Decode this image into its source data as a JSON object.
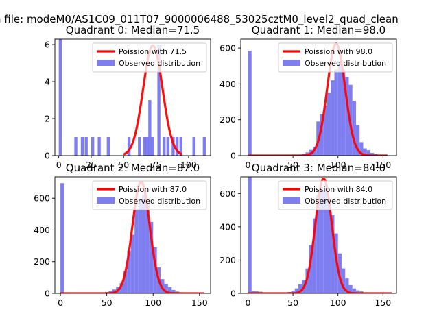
{
  "suptitle": "n file: modeM0/AS1C09_011T07_9000006488_53025cztM0_level2_quad_clean",
  "colors": {
    "model": "#ff0000",
    "hist": "#7070f0"
  },
  "chart_data": [
    {
      "type": "bar",
      "title": "Quadrant 0: Median=71.5",
      "median": 71.5,
      "xlim": [
        -3,
        117
      ],
      "ylim": [
        0,
        6.3
      ],
      "xticks": [
        0,
        25,
        50,
        75,
        100
      ],
      "xtick_labels": [
        "0",
        "25",
        "50",
        "75",
        "100"
      ],
      "yticks": [
        0,
        2,
        4,
        6
      ],
      "ytick_labels": [
        "0",
        "2",
        "4",
        "6"
      ],
      "bin_width": 2.3,
      "bins": [
        {
          "x": 0,
          "y": 6.3
        },
        {
          "x": 12,
          "y": 1
        },
        {
          "x": 17,
          "y": 1
        },
        {
          "x": 20,
          "y": 1
        },
        {
          "x": 25,
          "y": 1
        },
        {
          "x": 30,
          "y": 1
        },
        {
          "x": 37,
          "y": 1
        },
        {
          "x": 53,
          "y": 1
        },
        {
          "x": 61,
          "y": 1
        },
        {
          "x": 65,
          "y": 1
        },
        {
          "x": 67,
          "y": 1
        },
        {
          "x": 69,
          "y": 3
        },
        {
          "x": 71,
          "y": 1
        },
        {
          "x": 76,
          "y": 6
        },
        {
          "x": 80,
          "y": 1
        },
        {
          "x": 83,
          "y": 1
        },
        {
          "x": 87,
          "y": 1
        },
        {
          "x": 90,
          "y": 1
        },
        {
          "x": 93,
          "y": 1
        },
        {
          "x": 103,
          "y": 1
        },
        {
          "x": 111,
          "y": 1
        }
      ],
      "model": {
        "x_min": 50,
        "x_max": 95,
        "amplitude": 5.95,
        "center": 72.5,
        "sigma": 7.5
      },
      "legend": [
        "Poission with 71.5",
        "Observed distribution"
      ]
    },
    {
      "type": "bar",
      "title": "Quadrant 1: Median=98.0",
      "median": 98.0,
      "xlim": [
        -8,
        165
      ],
      "ylim": [
        0,
        650
      ],
      "xticks": [
        0,
        50,
        100,
        150
      ],
      "xtick_labels": [
        "0",
        "50",
        "100",
        "150"
      ],
      "yticks": [
        0,
        200,
        400,
        600
      ],
      "ytick_labels": [
        "0",
        "200",
        "400",
        "600"
      ],
      "bin_width": 4,
      "bins": [
        {
          "x": 0,
          "y": 585
        },
        {
          "x": 4,
          "y": 4
        },
        {
          "x": 8,
          "y": 3
        },
        {
          "x": 12,
          "y": 3
        },
        {
          "x": 16,
          "y": 2
        },
        {
          "x": 20,
          "y": 2
        },
        {
          "x": 24,
          "y": 2
        },
        {
          "x": 28,
          "y": 2
        },
        {
          "x": 32,
          "y": 3
        },
        {
          "x": 36,
          "y": 2
        },
        {
          "x": 40,
          "y": 3
        },
        {
          "x": 44,
          "y": 3
        },
        {
          "x": 48,
          "y": 3
        },
        {
          "x": 52,
          "y": 4
        },
        {
          "x": 56,
          "y": 6
        },
        {
          "x": 60,
          "y": 10
        },
        {
          "x": 64,
          "y": 18
        },
        {
          "x": 68,
          "y": 32
        },
        {
          "x": 72,
          "y": 50
        },
        {
          "x": 76,
          "y": 190
        },
        {
          "x": 80,
          "y": 230
        },
        {
          "x": 84,
          "y": 280
        },
        {
          "x": 88,
          "y": 350
        },
        {
          "x": 92,
          "y": 420
        },
        {
          "x": 96,
          "y": 480
        },
        {
          "x": 100,
          "y": 525
        },
        {
          "x": 104,
          "y": 480
        },
        {
          "x": 108,
          "y": 440
        },
        {
          "x": 112,
          "y": 395
        },
        {
          "x": 116,
          "y": 305
        },
        {
          "x": 120,
          "y": 170
        },
        {
          "x": 124,
          "y": 75
        },
        {
          "x": 128,
          "y": 40
        },
        {
          "x": 132,
          "y": 30
        },
        {
          "x": 136,
          "y": 15
        },
        {
          "x": 140,
          "y": 8
        },
        {
          "x": 144,
          "y": 5
        },
        {
          "x": 148,
          "y": 3
        },
        {
          "x": 152,
          "y": 2
        }
      ],
      "model": {
        "x_min": 0,
        "x_max": 155,
        "amplitude": 625,
        "center": 98,
        "sigma": 9.9
      },
      "legend": [
        "Poission with 98.0",
        "Observed distribution"
      ]
    },
    {
      "type": "bar",
      "title": "Quadrant 2: Median=87.0",
      "median": 87.0,
      "xlim": [
        -6,
        162
      ],
      "ylim": [
        0,
        735
      ],
      "xticks": [
        0,
        50,
        100,
        150
      ],
      "xtick_labels": [
        "0",
        "50",
        "100",
        "150"
      ],
      "yticks": [
        0,
        200,
        400,
        600
      ],
      "ytick_labels": [
        "0",
        "200",
        "400",
        "600"
      ],
      "bin_width": 4,
      "bins": [
        {
          "x": 0,
          "y": 695
        },
        {
          "x": 4,
          "y": 5
        },
        {
          "x": 8,
          "y": 4
        },
        {
          "x": 12,
          "y": 4
        },
        {
          "x": 16,
          "y": 3
        },
        {
          "x": 20,
          "y": 3
        },
        {
          "x": 24,
          "y": 3
        },
        {
          "x": 28,
          "y": 3
        },
        {
          "x": 32,
          "y": 3
        },
        {
          "x": 36,
          "y": 3
        },
        {
          "x": 40,
          "y": 3
        },
        {
          "x": 44,
          "y": 4
        },
        {
          "x": 48,
          "y": 8
        },
        {
          "x": 52,
          "y": 15
        },
        {
          "x": 56,
          "y": 25
        },
        {
          "x": 60,
          "y": 42
        },
        {
          "x": 64,
          "y": 65
        },
        {
          "x": 68,
          "y": 140
        },
        {
          "x": 72,
          "y": 270
        },
        {
          "x": 76,
          "y": 370
        },
        {
          "x": 80,
          "y": 530
        },
        {
          "x": 84,
          "y": 590
        },
        {
          "x": 88,
          "y": 620
        },
        {
          "x": 92,
          "y": 560
        },
        {
          "x": 96,
          "y": 450
        },
        {
          "x": 100,
          "y": 290
        },
        {
          "x": 104,
          "y": 165
        },
        {
          "x": 108,
          "y": 90
        },
        {
          "x": 112,
          "y": 60
        },
        {
          "x": 116,
          "y": 40
        },
        {
          "x": 120,
          "y": 22
        },
        {
          "x": 124,
          "y": 12
        },
        {
          "x": 128,
          "y": 7
        },
        {
          "x": 132,
          "y": 4
        },
        {
          "x": 136,
          "y": 3
        },
        {
          "x": 140,
          "y": 2
        },
        {
          "x": 144,
          "y": 2
        },
        {
          "x": 148,
          "y": 2
        },
        {
          "x": 152,
          "y": 2
        }
      ],
      "model": {
        "x_min": 0,
        "x_max": 155,
        "amplitude": 705,
        "center": 87,
        "sigma": 9.3
      },
      "legend": [
        "Poission with 87.0",
        "Observed distribution"
      ]
    },
    {
      "type": "bar",
      "title": "Quadrant 3: Median=84.0",
      "median": 84.0,
      "xlim": [
        -8,
        165
      ],
      "ylim": [
        0,
        700
      ],
      "xticks": [
        0,
        50,
        100,
        150
      ],
      "xtick_labels": [
        "0",
        "50",
        "100",
        "150"
      ],
      "yticks": [
        0,
        200,
        400,
        600
      ],
      "ytick_labels": [
        "0",
        "200",
        "400",
        "600"
      ],
      "bin_width": 4,
      "bins": [
        {
          "x": 0,
          "y": 700
        },
        {
          "x": 4,
          "y": 14
        },
        {
          "x": 8,
          "y": 12
        },
        {
          "x": 12,
          "y": 10
        },
        {
          "x": 16,
          "y": 5
        },
        {
          "x": 20,
          "y": 4
        },
        {
          "x": 24,
          "y": 4
        },
        {
          "x": 28,
          "y": 4
        },
        {
          "x": 32,
          "y": 4
        },
        {
          "x": 36,
          "y": 4
        },
        {
          "x": 40,
          "y": 5
        },
        {
          "x": 44,
          "y": 8
        },
        {
          "x": 48,
          "y": 15
        },
        {
          "x": 52,
          "y": 30
        },
        {
          "x": 56,
          "y": 55
        },
        {
          "x": 60,
          "y": 80
        },
        {
          "x": 64,
          "y": 150
        },
        {
          "x": 68,
          "y": 290
        },
        {
          "x": 72,
          "y": 450
        },
        {
          "x": 76,
          "y": 590
        },
        {
          "x": 80,
          "y": 620
        },
        {
          "x": 84,
          "y": 630
        },
        {
          "x": 88,
          "y": 560
        },
        {
          "x": 92,
          "y": 470
        },
        {
          "x": 96,
          "y": 360
        },
        {
          "x": 100,
          "y": 240
        },
        {
          "x": 104,
          "y": 150
        },
        {
          "x": 108,
          "y": 90
        },
        {
          "x": 112,
          "y": 50
        },
        {
          "x": 116,
          "y": 30
        },
        {
          "x": 120,
          "y": 18
        },
        {
          "x": 124,
          "y": 12
        },
        {
          "x": 128,
          "y": 6
        },
        {
          "x": 132,
          "y": 4
        },
        {
          "x": 136,
          "y": 3
        },
        {
          "x": 140,
          "y": 3
        },
        {
          "x": 144,
          "y": 2
        },
        {
          "x": 148,
          "y": 2
        },
        {
          "x": 152,
          "y": 2
        }
      ],
      "model": {
        "x_min": 0,
        "x_max": 160,
        "amplitude": 690,
        "center": 84,
        "sigma": 9.1
      },
      "legend": [
        "Poission with 84.0",
        "Observed distribution"
      ]
    }
  ]
}
